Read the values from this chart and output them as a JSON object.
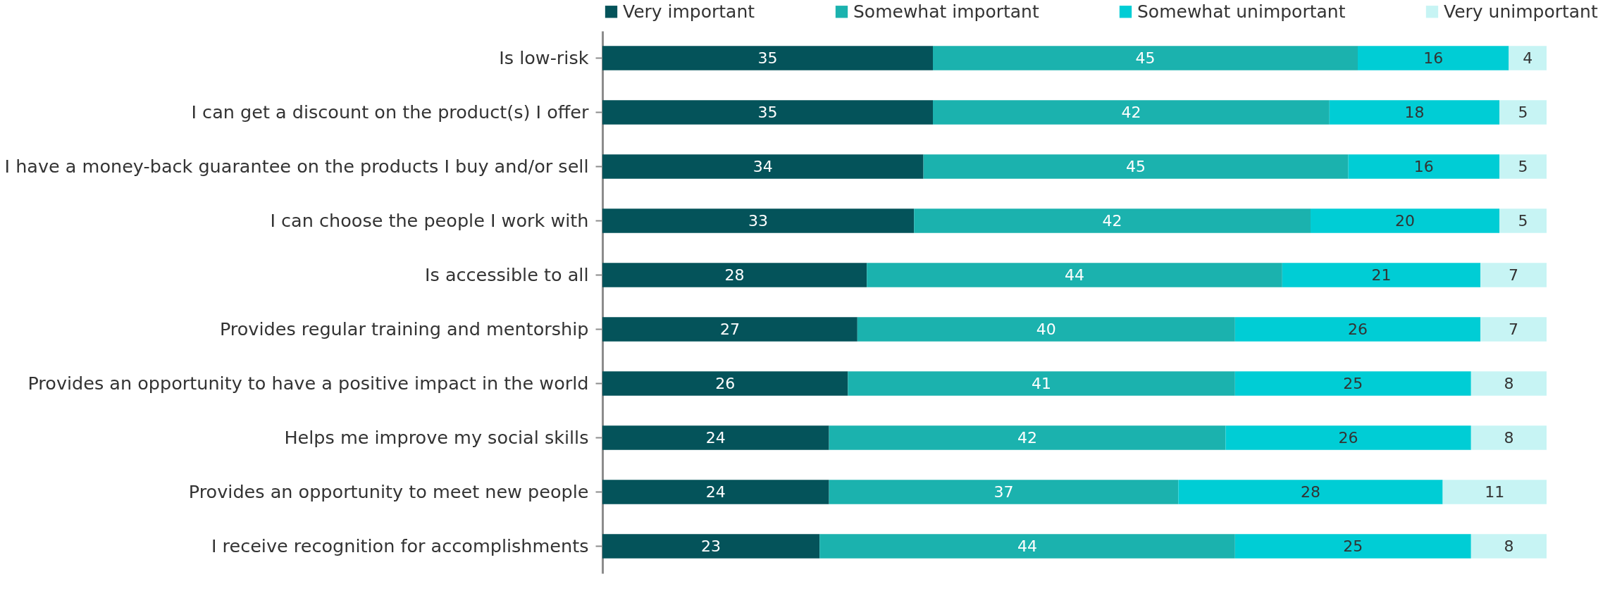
{
  "chart_data": {
    "type": "bar",
    "orientation": "horizontal",
    "stacked": true,
    "data_labels": true,
    "legend": "top",
    "tick_labels": "y",
    "xlim": [
      0,
      100
    ],
    "categories": [
      "Is low-risk",
      "I can get a discount on the product(s) I offer",
      "I have a money-back guarantee on the products I buy and/or sell",
      "I can choose the people I work with",
      "Is accessible to all",
      "Provides regular training and mentorship",
      "Provides an opportunity to have a positive impact in the world",
      "Helps me improve my social skills",
      "Provides an opportunity to meet new people",
      "I receive recognition for accomplishments"
    ],
    "series": [
      {
        "name": "Very important",
        "color": "#04535a",
        "values": [
          35,
          35,
          34,
          33,
          28,
          27,
          26,
          24,
          24,
          23
        ]
      },
      {
        "name": "Somewhat important",
        "color": "#1bb2ae",
        "values": [
          45,
          42,
          45,
          42,
          44,
          40,
          41,
          42,
          37,
          44
        ]
      },
      {
        "name": "Somewhat unimportant",
        "color": "#00cdd5",
        "values": [
          16,
          18,
          16,
          20,
          21,
          26,
          25,
          26,
          28,
          25
        ]
      },
      {
        "name": "Very unimportant",
        "color": "#c7f4f4",
        "values": [
          4,
          5,
          5,
          5,
          7,
          7,
          8,
          8,
          11,
          8
        ]
      }
    ]
  }
}
